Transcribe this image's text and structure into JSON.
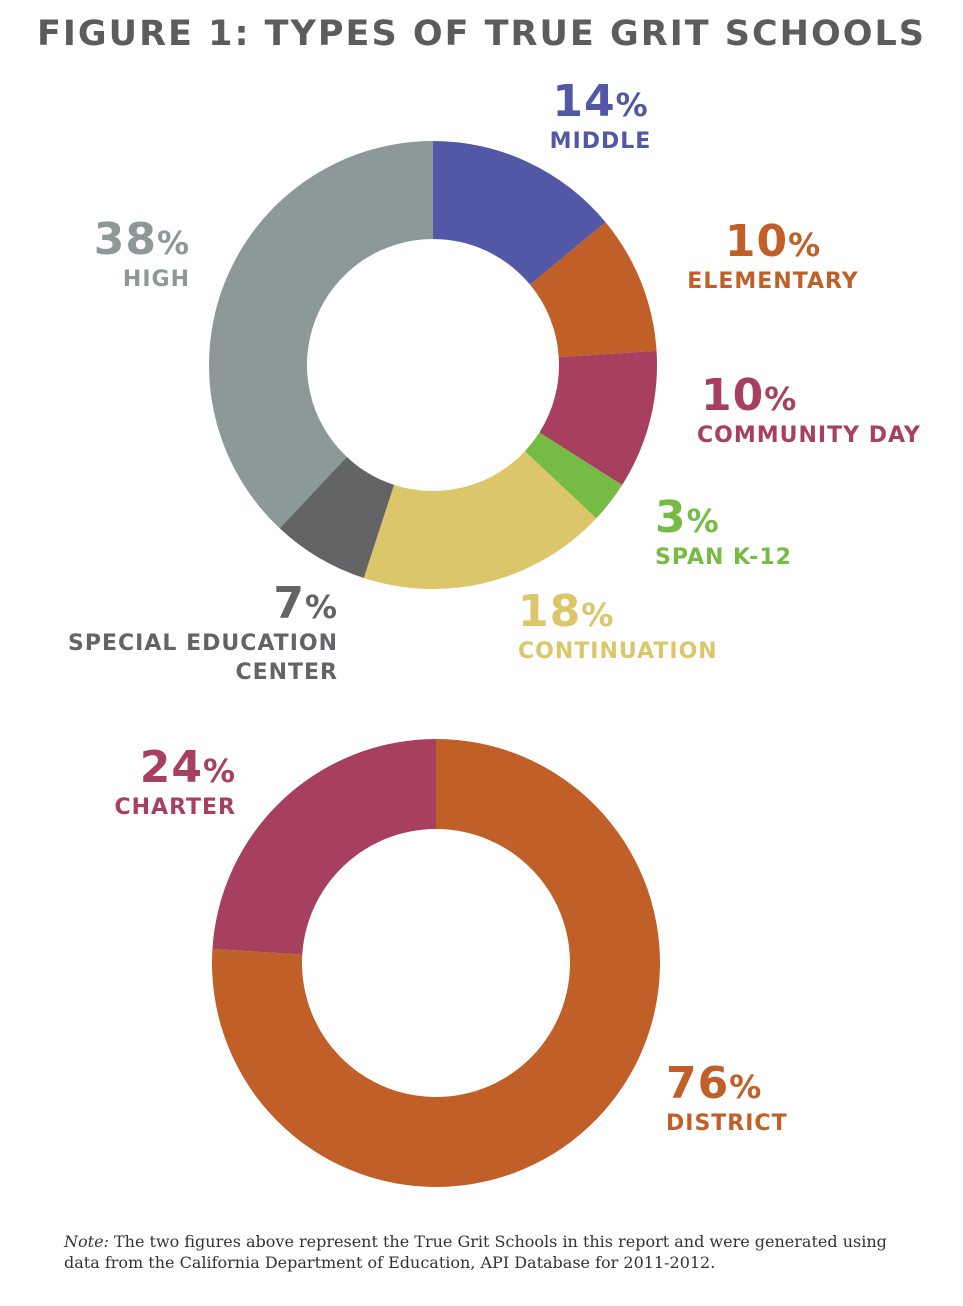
{
  "title": "FIGURE 1: TYPES OF TRUE GRIT SCHOOLS",
  "percent_symbol": "%",
  "note": {
    "label": "Note:",
    "text": " The two figures above represent the True Grit Schools in this report and were generated using data from the California Department of Education, API Database for 2011-2012."
  },
  "chart_data": [
    {
      "type": "pie",
      "donut": true,
      "title": "",
      "start": "top, clockwise",
      "slices": [
        {
          "label": "MIDDLE",
          "value": 14,
          "color": "#5358a6"
        },
        {
          "label": "ELEMENTARY",
          "value": 10,
          "color": "#c05f27"
        },
        {
          "label": "COMMUNITY DAY",
          "value": 10,
          "color": "#a73f5f"
        },
        {
          "label": "SPAN K-12",
          "value": 3,
          "color": "#76bb43"
        },
        {
          "label": "CONTINUATION",
          "value": 18,
          "color": "#dcc66a"
        },
        {
          "label": "SPECIAL EDUCATION CENTER",
          "value": 7,
          "color": "#626466"
        },
        {
          "label": "HIGH",
          "value": 38,
          "color": "#8d9999"
        }
      ]
    },
    {
      "type": "pie",
      "donut": true,
      "title": "",
      "start": "top, clockwise",
      "slices": [
        {
          "label": "DISTRICT",
          "value": 76,
          "color": "#c05f27"
        },
        {
          "label": "CHARTER",
          "value": 24,
          "color": "#a73f5f"
        }
      ]
    }
  ]
}
